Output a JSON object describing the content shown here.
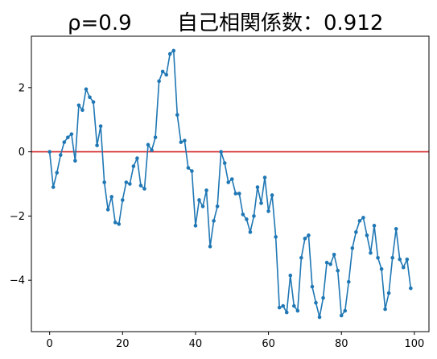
{
  "chart_data": {
    "type": "line",
    "title_left": "ρ=0.9",
    "title_right": "自己相関係数：0.912",
    "xlabel": "",
    "ylabel": "",
    "xlim": [
      -5,
      104
    ],
    "ylim": [
      -5.6,
      3.6
    ],
    "xticks": [
      0,
      20,
      40,
      60,
      80,
      100
    ],
    "yticks": [
      -4,
      -2,
      0,
      2
    ],
    "grid": false,
    "line_color": "#1f77b4",
    "reference_line": {
      "y": 0,
      "color": "#d62728"
    },
    "series": [
      {
        "x": [
          0,
          1,
          2,
          3,
          4,
          5,
          6,
          7,
          8,
          9,
          10,
          11,
          12,
          13,
          14,
          15,
          16,
          17,
          18,
          19,
          20,
          21,
          22,
          23,
          24,
          25,
          26,
          27,
          28,
          29,
          30,
          31,
          32,
          33,
          34,
          35,
          36,
          37,
          38,
          39,
          40,
          41,
          42,
          43,
          44,
          45,
          46,
          47,
          48,
          49,
          50,
          51,
          52,
          53,
          54,
          55,
          56,
          57,
          58,
          59,
          60,
          61,
          62,
          63,
          64,
          65,
          66,
          67,
          68,
          69,
          70,
          71,
          72,
          73,
          74,
          75,
          76,
          77,
          78,
          79,
          80,
          81,
          82,
          83,
          84,
          85,
          86,
          87,
          88,
          89,
          90,
          91,
          92,
          93,
          94,
          95,
          96,
          97,
          98,
          99
        ],
        "values": [
          0.0,
          -1.1,
          -0.65,
          -0.1,
          0.3,
          0.45,
          0.55,
          -0.28,
          1.45,
          1.3,
          1.95,
          1.7,
          1.55,
          0.2,
          0.8,
          -0.95,
          -1.8,
          -1.4,
          -2.2,
          -2.25,
          -1.5,
          -0.95,
          -1.0,
          -0.45,
          -0.2,
          -1.05,
          -1.15,
          0.22,
          0.05,
          0.45,
          2.2,
          2.5,
          2.4,
          3.05,
          3.15,
          1.15,
          0.3,
          0.35,
          -0.5,
          -0.6,
          -2.3,
          -1.5,
          -1.7,
          -1.2,
          -2.95,
          -2.15,
          -1.7,
          0.0,
          -0.35,
          -0.95,
          -0.85,
          -1.3,
          -1.3,
          -1.95,
          -2.1,
          -2.5,
          -2.0,
          -1.1,
          -1.6,
          -0.8,
          -1.85,
          -1.35,
          -2.65,
          -4.85,
          -4.8,
          -5.0,
          -3.85,
          -4.8,
          -4.95,
          -3.3,
          -2.7,
          -2.6,
          -4.2,
          -4.7,
          -5.15,
          -4.55,
          -3.45,
          -3.5,
          -3.2,
          -3.7,
          -5.1,
          -4.95,
          -4.05,
          -3.0,
          -2.5,
          -2.15,
          -2.05,
          -2.6,
          -3.15,
          -2.3,
          -3.3,
          -3.65,
          -4.9,
          -4.4,
          -3.3,
          -2.4,
          -3.35,
          -3.6,
          -3.35,
          -4.25
        ]
      }
    ]
  }
}
